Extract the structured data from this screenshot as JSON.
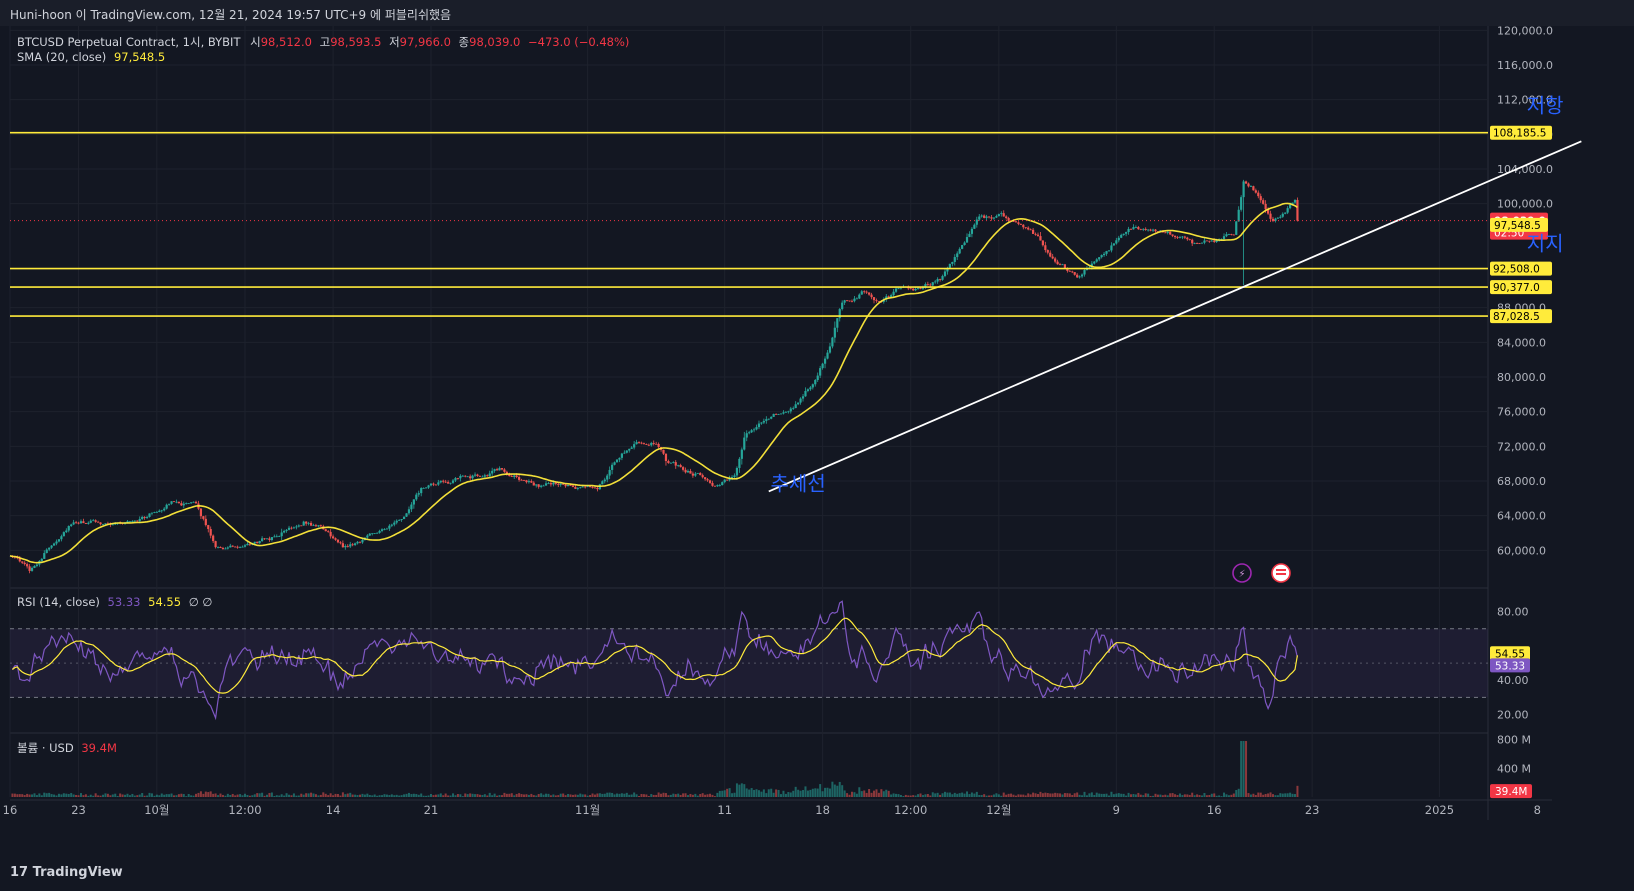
{
  "header": {
    "publish_line": "Huni-hoon 이 TradingView.com, 12월 21, 2024 19:57 UTC+9 에 퍼블리쉬했음"
  },
  "legend": {
    "symbol": "BTCUSD Perpetual Contract, 1시, BYBIT",
    "open_label": "시",
    "open": "98,512.0",
    "high_label": "고",
    "high": "98,593.5",
    "low_label": "저",
    "low": "97,966.0",
    "close_label": "종",
    "close": "98,039.0",
    "change": "−473.0 (−0.48%)",
    "sma_label": "SMA (20, close)",
    "sma_value": "97,548.5",
    "rsi_label": "RSI (14, close)",
    "rsi_value": "53.33",
    "rsi_ma": "54.55",
    "rsi_extra": "∅ ∅",
    "volume_label": "볼륨 · USD",
    "volume_value": "39.4M"
  },
  "footer": {
    "logo": "TradingView"
  },
  "chart_data": [
    {
      "type": "candlestick",
      "name": "price",
      "y_ticks": [
        60000,
        64000,
        68000,
        72000,
        76000,
        80000,
        84000,
        88000,
        100000,
        104000,
        108000,
        112000,
        116000,
        120000
      ],
      "y_tick_labels": [
        "60,000.0",
        "64,000.0",
        "68,000.0",
        "72,000.0",
        "76,000.0",
        "80,000.0",
        "84,000.0",
        "88,000.0",
        "100,000.0",
        "104,000.0",
        "108,000.0",
        "112,000.0",
        "116,000.0",
        "120,000.0"
      ],
      "ylim": [
        56000,
        120500
      ],
      "x_ticks": [
        "16",
        "23",
        "10월",
        "12:00",
        "14",
        "21",
        "11월",
        "11",
        "18",
        "12:00",
        "12월",
        "9",
        "16",
        "23",
        "2025",
        "8"
      ],
      "x_tick_day": [
        0,
        7,
        15,
        24,
        33,
        43,
        59,
        73,
        83,
        92,
        101,
        113,
        123,
        133,
        146,
        156
      ],
      "x_range_days": [
        0,
        157.5
      ],
      "last_day": 131.5,
      "path": [
        [
          0,
          59600
        ],
        [
          2,
          57500
        ],
        [
          4,
          60500
        ],
        [
          6,
          63000
        ],
        [
          9,
          63200
        ],
        [
          12,
          63300
        ],
        [
          14,
          64000
        ],
        [
          17,
          65900
        ],
        [
          19,
          65000
        ],
        [
          21,
          60600
        ],
        [
          24,
          60200
        ],
        [
          27,
          61500
        ],
        [
          30,
          63500
        ],
        [
          32,
          62500
        ],
        [
          34,
          60300
        ],
        [
          36,
          61300
        ],
        [
          38,
          62800
        ],
        [
          40,
          63300
        ],
        [
          42,
          66800
        ],
        [
          44,
          67500
        ],
        [
          46,
          68200
        ],
        [
          48,
          68600
        ],
        [
          50,
          69200
        ],
        [
          52,
          68300
        ],
        [
          54,
          67500
        ],
        [
          56,
          67800
        ],
        [
          58,
          66900
        ],
        [
          60,
          67200
        ],
        [
          62,
          70500
        ],
        [
          64,
          72900
        ],
        [
          66,
          72500
        ],
        [
          67,
          70200
        ],
        [
          69,
          69300
        ],
        [
          71,
          68700
        ],
        [
          72,
          67800
        ],
        [
          74,
          68200
        ],
        [
          75,
          72800
        ],
        [
          77,
          75200
        ],
        [
          80,
          76200
        ],
        [
          82,
          79300
        ],
        [
          84,
          84800
        ],
        [
          85,
          88300
        ],
        [
          87,
          89800
        ],
        [
          89,
          88300
        ],
        [
          91,
          90200
        ],
        [
          93,
          89800
        ],
        [
          95,
          91200
        ],
        [
          97,
          94800
        ],
        [
          99,
          98200
        ],
        [
          101,
          98600
        ],
        [
          103,
          97800
        ],
        [
          105,
          96200
        ],
        [
          107,
          93200
        ],
        [
          109,
          91800
        ],
        [
          111,
          93500
        ],
        [
          113,
          95800
        ],
        [
          115,
          97200
        ],
        [
          117,
          96800
        ],
        [
          119,
          96200
        ],
        [
          121,
          95300
        ],
        [
          123,
          95800
        ],
        [
          125,
          96800
        ],
        [
          126,
          102800
        ],
        [
          127,
          101800
        ],
        [
          128,
          100400
        ],
        [
          129,
          98300
        ],
        [
          130,
          99200
        ],
        [
          132,
          100800
        ],
        [
          134,
          100600
        ],
        [
          136,
          99800
        ],
        [
          137,
          97700
        ],
        [
          138,
          98200
        ],
        [
          139,
          99200
        ],
        [
          140,
          101800
        ],
        [
          142,
          103200
        ],
        [
          144,
          103800
        ],
        [
          145,
          103400
        ],
        [
          147,
          106200
        ],
        [
          149,
          107600
        ],
        [
          150,
          107400
        ],
        [
          151,
          106200
        ],
        [
          152,
          103900
        ],
        [
          153,
          101200
        ],
        [
          154,
          98200
        ],
        [
          155,
          94200
        ],
        [
          156,
          96300
        ],
        [
          157,
          97800
        ],
        [
          157.5,
          98039
        ]
      ],
      "spike_lows": [
        [
          126,
          90600
        ],
        [
          155.5,
          92000
        ]
      ],
      "horizontal_levels": [
        {
          "value": 108185.5,
          "label": "108,185.5"
        },
        {
          "value": 92508.0,
          "label": "92,508.0"
        },
        {
          "value": 90377.0,
          "label": "90,377.0"
        },
        {
          "value": 87028.5,
          "label": "87,028.5"
        }
      ],
      "last_price": {
        "value": 98039.0,
        "label": "98,039.0",
        "countdown": "02:50"
      },
      "sma_last": {
        "value": 97548.5,
        "label": "97,548.5"
      },
      "trendline": {
        "start": [
          77.5,
          66800
        ],
        "end": [
          160.5,
          107200
        ]
      },
      "annotations": [
        {
          "text": "저항",
          "day": 156.8,
          "value": 110500
        },
        {
          "text": "지지",
          "day": 156.8,
          "value": 94600
        },
        {
          "text": "추세선",
          "day": 80.5,
          "value": 66900
        }
      ]
    },
    {
      "type": "line",
      "name": "rsi",
      "y_ticks": [
        20,
        40,
        80
      ],
      "y_tick_labels": [
        "20.00",
        "40.00",
        "80.00"
      ],
      "ylim": [
        11,
        92
      ],
      "band": [
        30,
        70
      ],
      "midline": 50,
      "rsi_last": {
        "value": 53.33,
        "label": "53.33"
      },
      "ma_last": {
        "value": 54.55,
        "label": "54.55"
      }
    },
    {
      "type": "bar",
      "name": "volume",
      "y_ticks": [
        400,
        800
      ],
      "y_tick_labels": [
        "400 M",
        "800 M"
      ],
      "last": {
        "value": 39.4,
        "label": "39.4M"
      }
    }
  ],
  "colors": {
    "background": "#131722",
    "grid": "#1e222d",
    "up": "#26a69a",
    "down": "#ef5350",
    "sma": "#ffeb3b",
    "level": "#ffeb3b",
    "trend": "#ffffff",
    "rsi": "#7e57c2",
    "rsi_ma": "#ffeb3b",
    "annotation": "#2962ff",
    "last_price": "#f23645"
  }
}
